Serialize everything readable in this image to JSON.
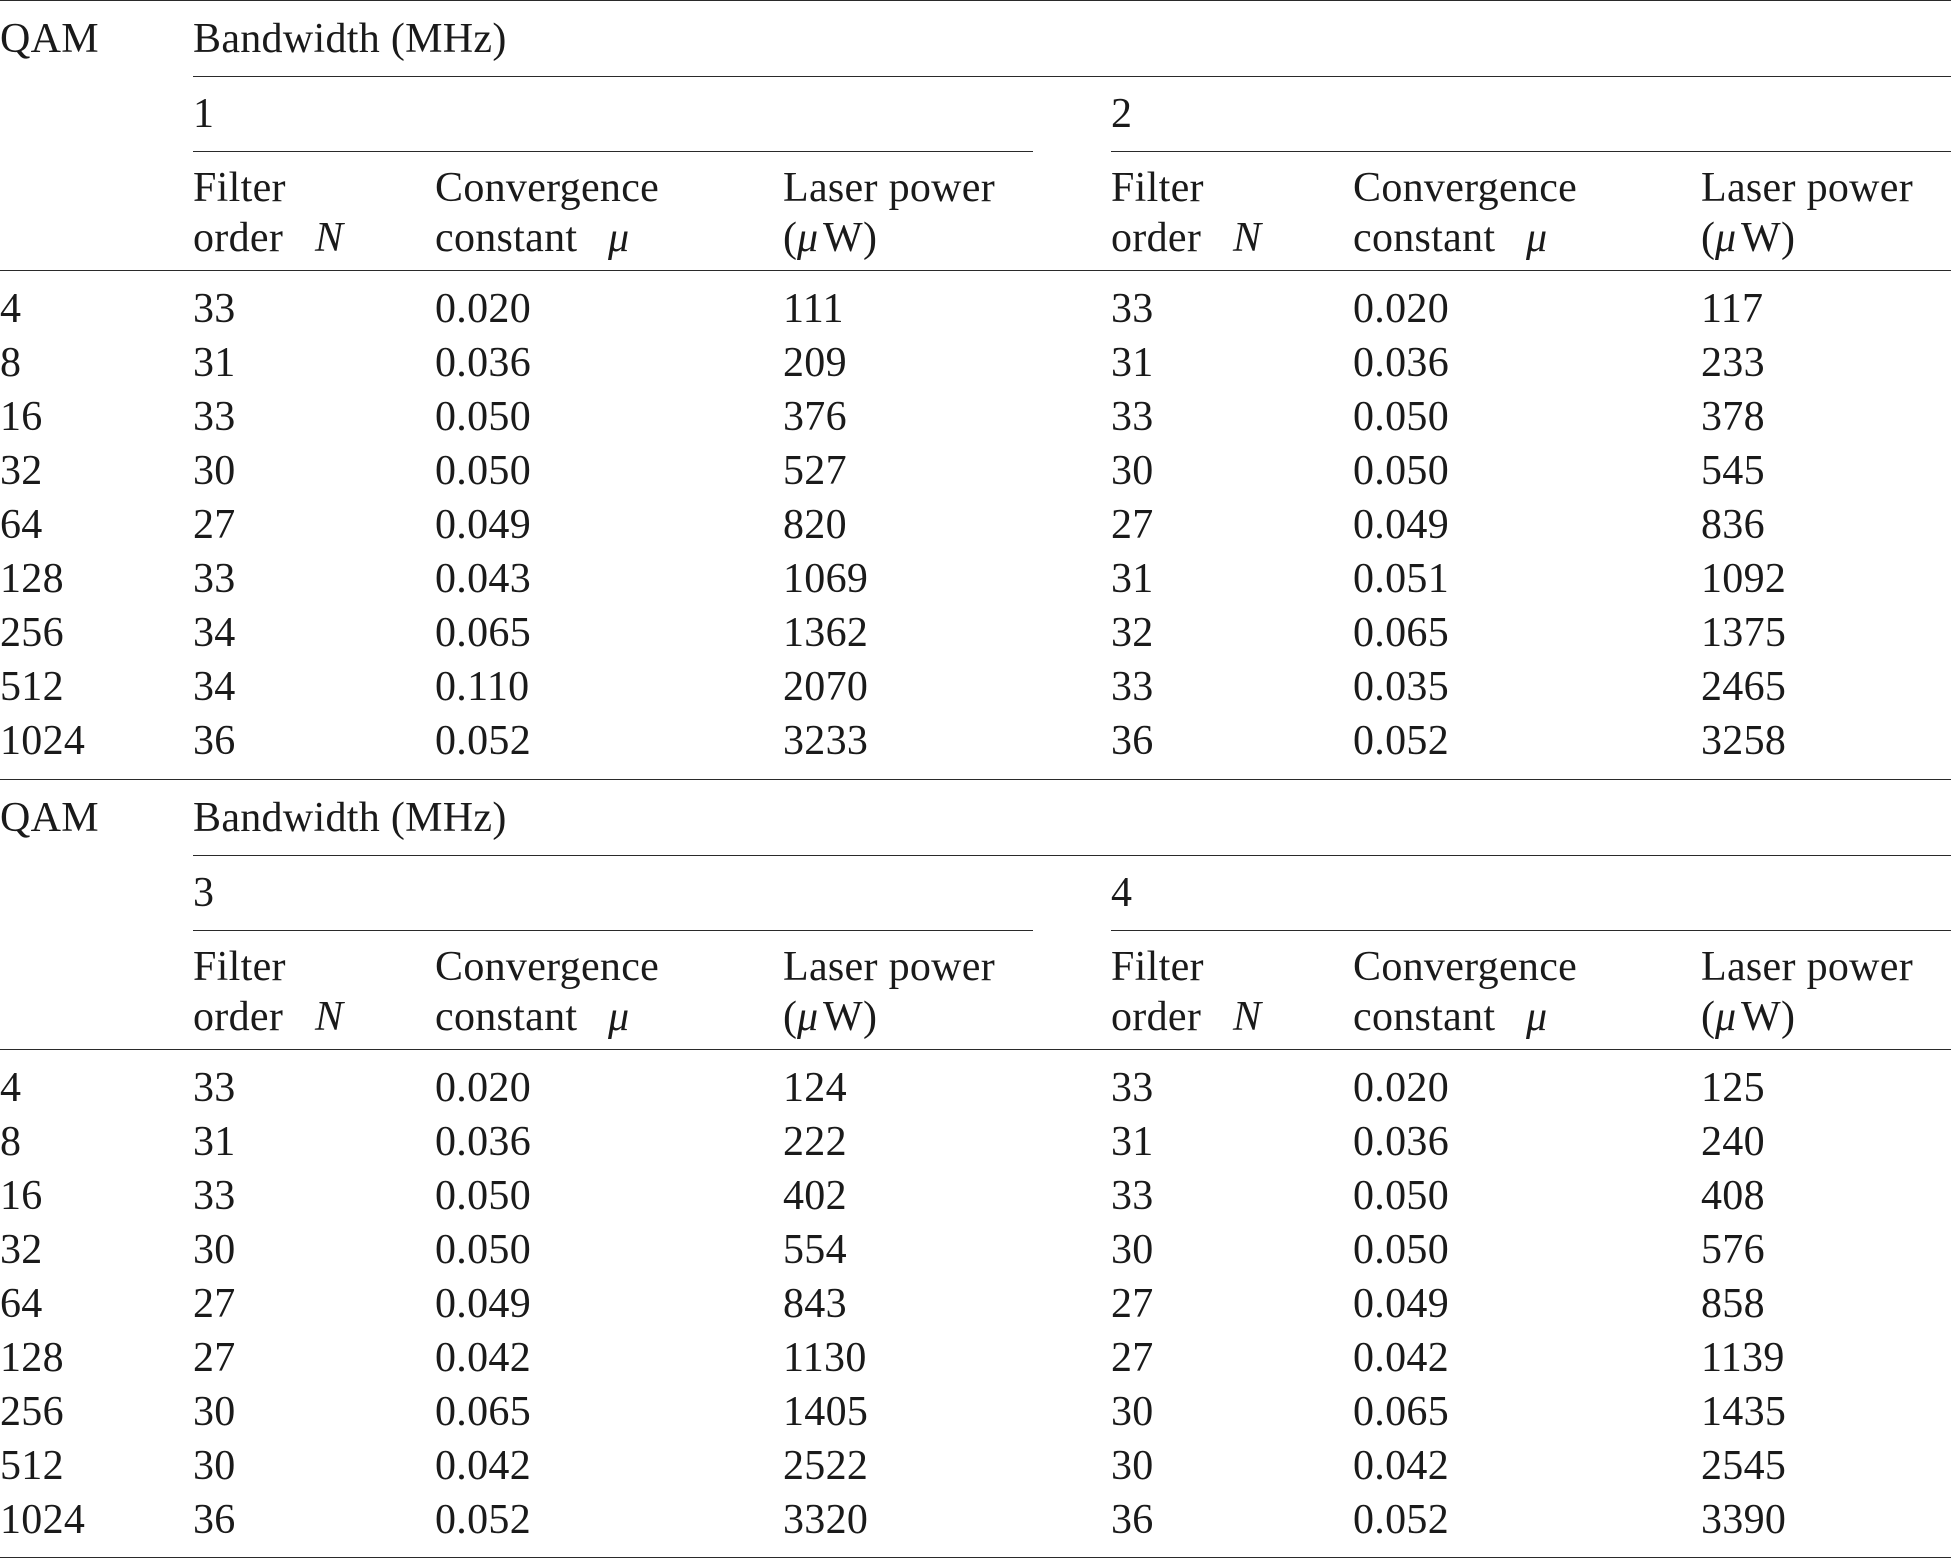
{
  "blocks": [
    {
      "qam_label": "QAM",
      "bandwidth_label": "Bandwidth (MHz)",
      "groups": [
        {
          "bandwidth": "1",
          "headers": {
            "filter": [
              "Filter",
              "order"
            ],
            "filter_sym": "N",
            "conv": [
              "Convergence",
              "constant"
            ],
            "conv_sym": "μ",
            "laser": [
              "Laser power",
              "("
            ],
            "laser_sym": "μ",
            "laser_unit": "W)"
          }
        },
        {
          "bandwidth": "2",
          "headers": {
            "filter": [
              "Filter",
              "order"
            ],
            "filter_sym": "N",
            "conv": [
              "Convergence",
              "constant"
            ],
            "conv_sym": "μ",
            "laser": [
              "Laser power",
              "("
            ],
            "laser_sym": "μ",
            "laser_unit": "W)"
          }
        }
      ],
      "rows": [
        [
          "4",
          "33",
          "0.020",
          "111",
          "33",
          "0.020",
          "117"
        ],
        [
          "8",
          "31",
          "0.036",
          "209",
          "31",
          "0.036",
          "233"
        ],
        [
          "16",
          "33",
          "0.050",
          "376",
          "33",
          "0.050",
          "378"
        ],
        [
          "32",
          "30",
          "0.050",
          "527",
          "30",
          "0.050",
          "545"
        ],
        [
          "64",
          "27",
          "0.049",
          "820",
          "27",
          "0.049",
          "836"
        ],
        [
          "128",
          "33",
          "0.043",
          "1069",
          "31",
          "0.051",
          "1092"
        ],
        [
          "256",
          "34",
          "0.065",
          "1362",
          "32",
          "0.065",
          "1375"
        ],
        [
          "512",
          "34",
          "0.110",
          "2070",
          "33",
          "0.035",
          "2465"
        ],
        [
          "1024",
          "36",
          "0.052",
          "3233",
          "36",
          "0.052",
          "3258"
        ]
      ]
    },
    {
      "qam_label": "QAM",
      "bandwidth_label": "Bandwidth (MHz)",
      "groups": [
        {
          "bandwidth": "3",
          "headers": {
            "filter": [
              "Filter",
              "order"
            ],
            "filter_sym": "N",
            "conv": [
              "Convergence",
              "constant"
            ],
            "conv_sym": "μ",
            "laser": [
              "Laser power",
              "("
            ],
            "laser_sym": "μ",
            "laser_unit": "W)"
          }
        },
        {
          "bandwidth": "4",
          "headers": {
            "filter": [
              "Filter",
              "order"
            ],
            "filter_sym": "N",
            "conv": [
              "Convergence",
              "constant"
            ],
            "conv_sym": "μ",
            "laser": [
              "Laser power",
              "("
            ],
            "laser_sym": "μ",
            "laser_unit": "W)"
          }
        }
      ],
      "rows": [
        [
          "4",
          "33",
          "0.020",
          "124",
          "33",
          "0.020",
          "125"
        ],
        [
          "8",
          "31",
          "0.036",
          "222",
          "31",
          "0.036",
          "240"
        ],
        [
          "16",
          "33",
          "0.050",
          "402",
          "33",
          "0.050",
          "408"
        ],
        [
          "32",
          "30",
          "0.050",
          "554",
          "30",
          "0.050",
          "576"
        ],
        [
          "64",
          "27",
          "0.049",
          "843",
          "27",
          "0.049",
          "858"
        ],
        [
          "128",
          "27",
          "0.042",
          "1130",
          "27",
          "0.042",
          "1139"
        ],
        [
          "256",
          "30",
          "0.065",
          "1405",
          "30",
          "0.065",
          "1435"
        ],
        [
          "512",
          "30",
          "0.042",
          "2522",
          "30",
          "0.042",
          "2545"
        ],
        [
          "1024",
          "36",
          "0.052",
          "3320",
          "36",
          "0.052",
          "3390"
        ]
      ]
    }
  ]
}
